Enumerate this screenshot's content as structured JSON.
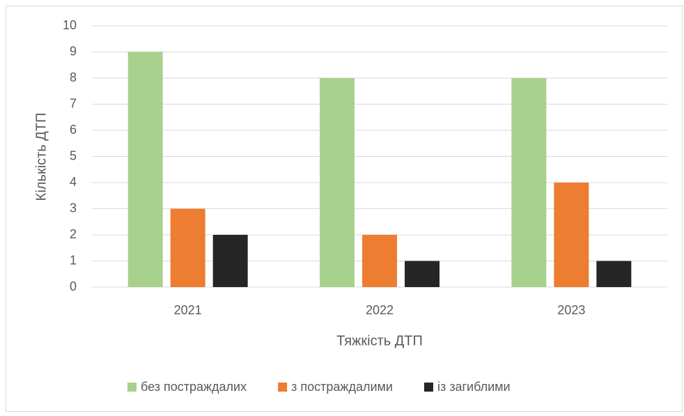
{
  "chart_data": {
    "type": "bar",
    "x_label": "Тяжкість ДТП",
    "y_label": "Кількість ДТП",
    "categories": [
      "2021",
      "2022",
      "2023"
    ],
    "series": [
      {
        "name": "без постраждалих",
        "color": "#a9d18e",
        "values": [
          9,
          8,
          8
        ]
      },
      {
        "name": "з постраждалими",
        "color": "#ed7d31",
        "values": [
          3,
          2,
          4
        ]
      },
      {
        "name": "із загиблими",
        "color": "#262626",
        "values": [
          2,
          1,
          1
        ]
      }
    ],
    "ylim": [
      0,
      10
    ],
    "yticks": [
      0,
      1,
      2,
      3,
      4,
      5,
      6,
      7,
      8,
      9,
      10
    ],
    "grid": true,
    "legend": "bottom"
  }
}
